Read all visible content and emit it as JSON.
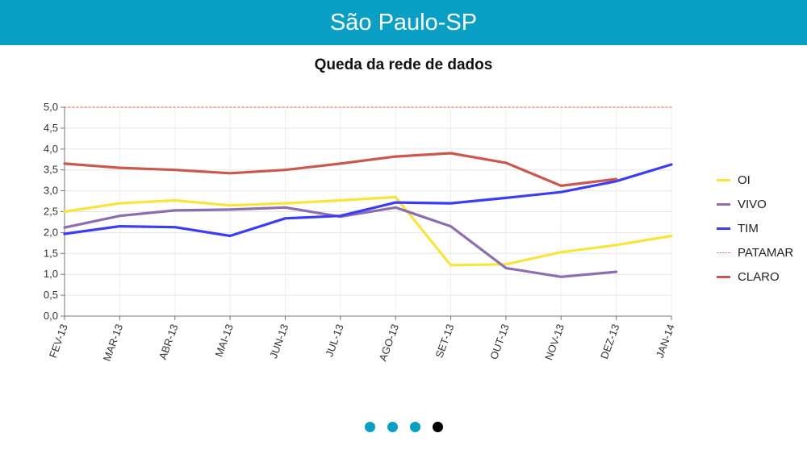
{
  "header": {
    "title": "São Paulo-SP"
  },
  "pager": {
    "count": 4,
    "active": 3,
    "color": "#0aa0c6",
    "active_color": "#000000"
  },
  "chart_data": {
    "type": "line",
    "title": "Queda da rede de dados",
    "xlabel": "",
    "ylabel": "",
    "categories": [
      "FEV-13",
      "MAR-13",
      "ABR-13",
      "MAI-13",
      "JUN-13",
      "JUL-13",
      "AGO-13",
      "SET-13",
      "OUT-13",
      "NOV-13",
      "DEZ-13",
      "JAN-14"
    ],
    "y_ticks": [
      "0,0",
      "0,5",
      "1,0",
      "1,5",
      "2,0",
      "2,5",
      "3,0",
      "3,5",
      "4,0",
      "4,5",
      "5,0"
    ],
    "ylim": [
      0,
      5
    ],
    "grid": true,
    "legend_position": "right",
    "series": [
      {
        "name": "OI",
        "color": "#f7e53b",
        "style": "solid",
        "values": [
          2.5,
          2.7,
          2.77,
          2.65,
          2.7,
          2.77,
          2.85,
          1.22,
          1.24,
          1.53,
          1.7,
          1.92
        ]
      },
      {
        "name": "VIVO",
        "color": "#8c6db0",
        "style": "solid",
        "values": [
          2.12,
          2.4,
          2.53,
          2.55,
          2.6,
          2.38,
          2.6,
          2.15,
          1.15,
          0.94,
          1.06,
          null
        ]
      },
      {
        "name": "TIM",
        "color": "#3c3cf5",
        "style": "solid",
        "values": [
          1.97,
          2.15,
          2.13,
          1.92,
          2.34,
          2.4,
          2.72,
          2.7,
          2.83,
          2.97,
          3.23,
          3.63
        ]
      },
      {
        "name": "PATAMAR",
        "color": "#e0553a",
        "style": "dotted",
        "values": [
          5,
          5,
          5,
          5,
          5,
          5,
          5,
          5,
          5,
          5,
          5,
          5
        ]
      },
      {
        "name": "CLARO",
        "color": "#c9584f",
        "style": "solid",
        "values": [
          3.65,
          3.55,
          3.5,
          3.42,
          3.5,
          3.65,
          3.82,
          3.9,
          3.67,
          3.12,
          3.28,
          null
        ]
      }
    ]
  }
}
